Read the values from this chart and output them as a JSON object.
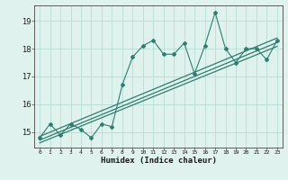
{
  "xlabel": "Humidex (Indice chaleur)",
  "ylabel": "",
  "x_data": [
    0,
    1,
    2,
    3,
    4,
    5,
    6,
    7,
    8,
    9,
    10,
    11,
    12,
    13,
    14,
    15,
    16,
    17,
    18,
    19,
    20,
    21,
    22,
    23
  ],
  "y_scatter": [
    14.8,
    15.3,
    14.9,
    15.3,
    15.1,
    14.8,
    15.3,
    15.2,
    16.7,
    17.7,
    18.1,
    18.3,
    17.8,
    17.8,
    18.2,
    17.1,
    18.1,
    19.3,
    18.0,
    17.5,
    18.0,
    18.0,
    17.6,
    18.3
  ],
  "regression_lines": [
    {
      "x0": 0,
      "y0": 14.85,
      "x1": 23,
      "y1": 18.38
    },
    {
      "x0": 0,
      "y0": 14.72,
      "x1": 23,
      "y1": 18.22
    },
    {
      "x0": 0,
      "y0": 14.62,
      "x1": 23,
      "y1": 18.08
    }
  ],
  "ylim": [
    14.45,
    19.55
  ],
  "xlim": [
    -0.5,
    23.5
  ],
  "yticks": [
    15,
    16,
    17,
    18,
    19
  ],
  "xticks": [
    0,
    1,
    2,
    3,
    4,
    5,
    6,
    7,
    8,
    9,
    10,
    11,
    12,
    13,
    14,
    15,
    16,
    17,
    18,
    19,
    20,
    21,
    22,
    23
  ],
  "line_color": "#2e7d6e",
  "bg_color": "#dff2ee",
  "grid_color": "#b8ddd7",
  "axis_color": "#444444",
  "font_color": "#1a1a1a"
}
